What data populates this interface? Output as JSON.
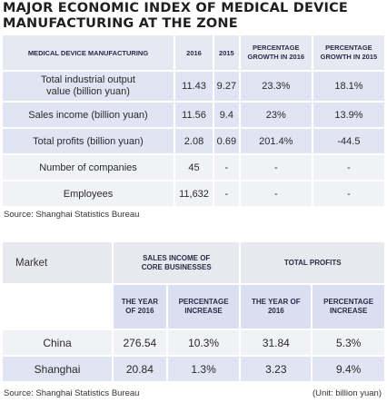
{
  "title": {
    "line1": "MAJOR ECONOMIC INDEX OF MEDICAL DEVICE",
    "line2": "MANUFACTURING AT THE ZONE"
  },
  "chart_data": [
    {
      "type": "table",
      "title": "MAJOR ECONOMIC INDEX OF MEDICAL DEVICE MANUFACTURING AT THE ZONE",
      "columns": [
        "MEDICAL DEVICE MANUFACTURING",
        "2016",
        "2015",
        "PERCENTAGE GROWTH IN 2016",
        "PERCENTAGE GROWTH IN 2015"
      ],
      "header_lines": {
        "c3a": "PERCENTAGE",
        "c3b": "GROWTH IN 2016",
        "c4a": "PERCENTAGE",
        "c4b": "GROWTH IN 2015"
      },
      "rows": [
        {
          "label_a": "Total industrial output",
          "label_b": "value (billion yuan)",
          "y2016": "11.43",
          "y2015": "9.27",
          "g2016": "23.3%",
          "g2015": "18.1%"
        },
        {
          "label": "Sales income (billion yuan)",
          "y2016": "11.56",
          "y2015": "9.4",
          "g2016": "23%",
          "g2015": "13.9%"
        },
        {
          "label": "Total profits (billion yuan)",
          "y2016": "2.08",
          "y2015": "0.69",
          "g2016": "201.4%",
          "g2015": "-44.5"
        },
        {
          "label": "Number of companies",
          "y2016": "45",
          "y2015": "-",
          "g2016": "-",
          "g2015": "-"
        },
        {
          "label": "Employees",
          "y2016": "11,632",
          "y2015": "-",
          "g2016": "-",
          "g2015": "-"
        }
      ],
      "source": "Source: Shanghai Statistics Bureau"
    },
    {
      "type": "table",
      "header": {
        "market": "Market",
        "sales_a": "SALES INCOME OF",
        "sales_b": "CORE BUSINESSES",
        "profits": "TOTAL PROFITS",
        "year_a": "THE YEAR",
        "year_b": "OF 2016",
        "pct_a": "PERCENTAGE",
        "pct_b": "INCREASE",
        "year2_a": "THE YEAR OF",
        "year2_b": "2016",
        "pct2_a": "PERCENTAGE",
        "pct2_b": "INCREASE"
      },
      "rows": [
        {
          "market": "China",
          "sales_2016": "276.54",
          "sales_increase": "10.3%",
          "profits_2016": "31.84",
          "profits_increase": "5.3%"
        },
        {
          "market": "Shanghai",
          "sales_2016": "20.84",
          "sales_increase": "1.3%",
          "profits_2016": "3.23",
          "profits_increase": "9.4%"
        }
      ],
      "source": "Source: Shanghai Statistics Bureau",
      "unit": "(Unit: billion yuan)"
    }
  ]
}
